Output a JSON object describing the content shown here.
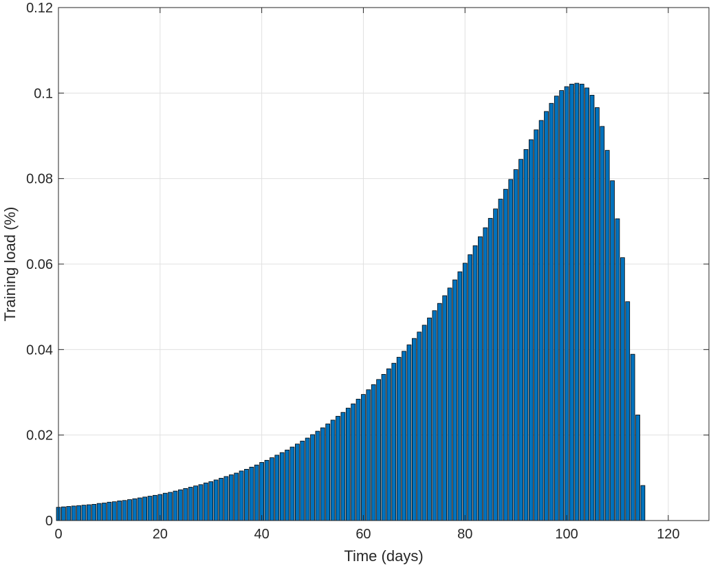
{
  "chart_data": {
    "type": "bar",
    "xlabel": "Time (days)",
    "ylabel": "Training load (%)",
    "xlim": [
      0,
      128
    ],
    "ylim": [
      0,
      0.12
    ],
    "xticks": [
      0,
      20,
      40,
      60,
      80,
      100,
      120
    ],
    "yticks": [
      0,
      0.02,
      0.04,
      0.06,
      0.08,
      0.1,
      0.12
    ],
    "grid": true,
    "bar_color": "#0072BD",
    "edge_color": "#000000",
    "x": [
      0,
      1,
      2,
      3,
      4,
      5,
      6,
      7,
      8,
      9,
      10,
      11,
      12,
      13,
      14,
      15,
      16,
      17,
      18,
      19,
      20,
      21,
      22,
      23,
      24,
      25,
      26,
      27,
      28,
      29,
      30,
      31,
      32,
      33,
      34,
      35,
      36,
      37,
      38,
      39,
      40,
      41,
      42,
      43,
      44,
      45,
      46,
      47,
      48,
      49,
      50,
      51,
      52,
      53,
      54,
      55,
      56,
      57,
      58,
      59,
      60,
      61,
      62,
      63,
      64,
      65,
      66,
      67,
      68,
      69,
      70,
      71,
      72,
      73,
      74,
      75,
      76,
      77,
      78,
      79,
      80,
      81,
      82,
      83,
      84,
      85,
      86,
      87,
      88,
      89,
      90,
      91,
      92,
      93,
      94,
      95,
      96,
      97,
      98,
      99,
      100,
      101,
      102,
      103,
      104,
      105,
      106,
      107,
      108,
      109,
      110,
      111,
      112,
      113,
      114,
      115,
      116
    ],
    "values": [
      0.0031,
      0.0032,
      0.0033,
      0.0034,
      0.0035,
      0.0036,
      0.0037,
      0.0038,
      0.004,
      0.0041,
      0.0043,
      0.0044,
      0.0046,
      0.0047,
      0.0049,
      0.0051,
      0.0053,
      0.0055,
      0.0057,
      0.0059,
      0.0061,
      0.0064,
      0.0066,
      0.0069,
      0.0072,
      0.0075,
      0.0078,
      0.0081,
      0.0084,
      0.0088,
      0.0091,
      0.0095,
      0.0099,
      0.0103,
      0.0107,
      0.0111,
      0.0116,
      0.012,
      0.0125,
      0.013,
      0.0136,
      0.0141,
      0.0147,
      0.0153,
      0.0159,
      0.0165,
      0.0172,
      0.0179,
      0.0186,
      0.0193,
      0.0201,
      0.0209,
      0.0217,
      0.0226,
      0.0235,
      0.0244,
      0.0253,
      0.0263,
      0.0273,
      0.0284,
      0.0295,
      0.0306,
      0.0318,
      0.033,
      0.0342,
      0.0355,
      0.0368,
      0.0382,
      0.0396,
      0.0411,
      0.0426,
      0.0441,
      0.0457,
      0.0474,
      0.0491,
      0.0508,
      0.0526,
      0.0544,
      0.0563,
      0.0582,
      0.0602,
      0.0622,
      0.0643,
      0.0664,
      0.0685,
      0.0707,
      0.0729,
      0.0752,
      0.0775,
      0.0798,
      0.0821,
      0.0845,
      0.0868,
      0.0891,
      0.0914,
      0.0936,
      0.0957,
      0.0976,
      0.0993,
      0.1006,
      0.1015,
      0.1021,
      0.1023,
      0.1021,
      0.1012,
      0.0995,
      0.0966,
      0.0922,
      0.0866,
      0.0795,
      0.0706,
      0.0615,
      0.0512,
      0.0389,
      0.0247,
      0.0082,
      0.0
    ]
  }
}
